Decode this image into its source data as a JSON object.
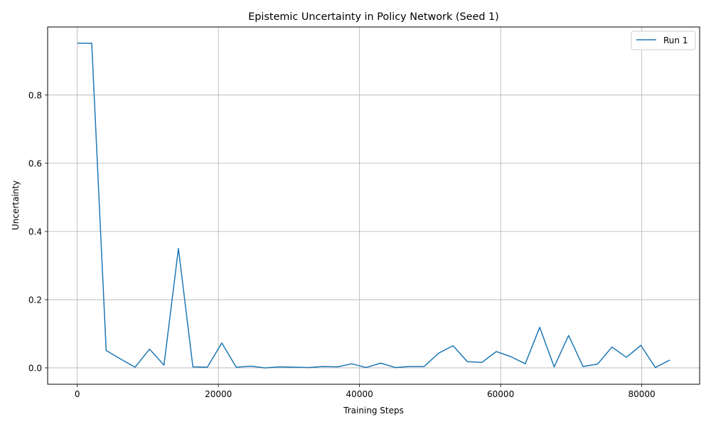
{
  "chart_data": {
    "type": "line",
    "title": "Epistemic Uncertainty in Policy Network (Seed 1)",
    "xlabel": "Training Steps",
    "ylabel": "Uncertainty",
    "xlim": [
      -4200,
      88200
    ],
    "ylim": [
      -0.048,
      0.9996
    ],
    "xticks": [
      0,
      20000,
      40000,
      60000,
      80000
    ],
    "xtick_labels": [
      "0",
      "20000",
      "40000",
      "60000",
      "80000"
    ],
    "yticks": [
      0.0,
      0.2,
      0.4,
      0.6,
      0.8
    ],
    "ytick_labels": [
      "0.0",
      "0.2",
      "0.4",
      "0.6",
      "0.8"
    ],
    "grid": true,
    "legend_position": "top-right",
    "series": [
      {
        "name": "Run 1",
        "color": "#1f77b4",
        "x": [
          0,
          2048,
          4096,
          6144,
          8192,
          10240,
          12288,
          14336,
          16384,
          18432,
          20480,
          22528,
          24576,
          26624,
          28672,
          30720,
          32768,
          34816,
          36864,
          38912,
          40960,
          43008,
          45056,
          47104,
          49152,
          51200,
          53248,
          55296,
          57344,
          59392,
          61440,
          63488,
          65536,
          67584,
          69632,
          71680,
          73728,
          75776,
          77824,
          79872,
          81920,
          83968
        ],
        "y": [
          0.952,
          0.952,
          0.051,
          0.026,
          0.002,
          0.055,
          0.008,
          0.35,
          0.003,
          0.002,
          0.073,
          0.002,
          0.005,
          0.0,
          0.003,
          0.002,
          0.001,
          0.004,
          0.003,
          0.012,
          0.001,
          0.014,
          0.001,
          0.004,
          0.004,
          0.043,
          0.065,
          0.018,
          0.016,
          0.048,
          0.033,
          0.012,
          0.119,
          0.003,
          0.095,
          0.004,
          0.011,
          0.061,
          0.031,
          0.066,
          0.001,
          0.023
        ]
      }
    ]
  }
}
